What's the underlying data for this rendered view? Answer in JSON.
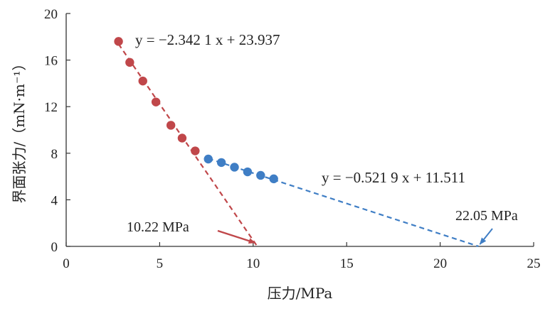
{
  "chart_data": {
    "type": "scatter",
    "xlabel": "压力/MPa",
    "ylabel": "界面张力/（mN·m⁻¹）",
    "xlim": [
      0,
      25
    ],
    "ylim": [
      0,
      20
    ],
    "xticks": [
      0,
      5,
      10,
      15,
      20,
      25
    ],
    "yticks": [
      0,
      4,
      8,
      12,
      16,
      20
    ],
    "grid": false,
    "series": [
      {
        "color": "#c0474a",
        "x": [
          2.8,
          3.4,
          4.1,
          4.8,
          5.6,
          6.2,
          6.9
        ],
        "y": [
          17.6,
          15.8,
          14.2,
          12.4,
          10.4,
          9.3,
          8.2
        ]
      },
      {
        "color": "#3f7ec5",
        "x": [
          7.6,
          8.3,
          9.0,
          9.7,
          10.4,
          11.1
        ],
        "y": [
          7.5,
          7.2,
          6.8,
          6.4,
          6.1,
          5.8
        ]
      }
    ],
    "fits": [
      {
        "equation": "y = −2.342 1 x + 23.937",
        "slope": -2.3421,
        "intercept": 23.937,
        "x_from": 2.8,
        "x_to": 10.22,
        "color": "#c0474a"
      },
      {
        "equation": "y = −0.521 9 x + 11.511",
        "slope": -0.5219,
        "intercept": 11.511,
        "x_from": 7.6,
        "x_to": 22.05,
        "color": "#3f7ec5"
      }
    ],
    "annotations": [
      {
        "text": "10.22 MPa",
        "x": 10.22,
        "y": 0,
        "color": "#c0474a"
      },
      {
        "text": "22.05 MPa",
        "x": 22.05,
        "y": 0,
        "color": "#3f7ec5"
      }
    ]
  }
}
